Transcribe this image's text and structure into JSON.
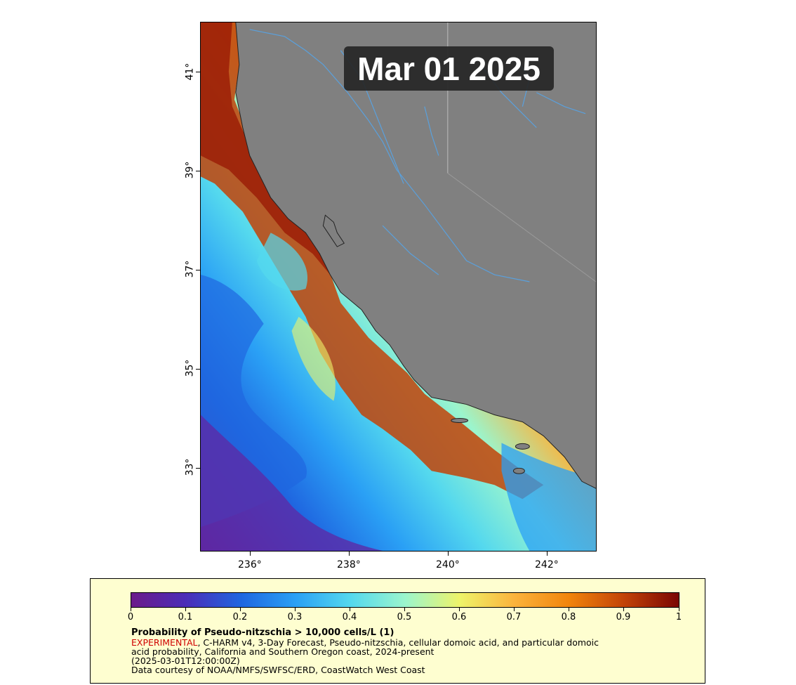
{
  "map": {
    "date_label": "Mar 01 2025",
    "lat_ticks": [
      "41°",
      "39°",
      "37°",
      "35°",
      "33°"
    ],
    "lon_ticks": [
      "236°",
      "238°",
      "240°",
      "242°"
    ],
    "colors": {
      "land": "#808080",
      "rivers": "#5aa0dc",
      "coastline": "#222222",
      "badge_bg": "#262626",
      "badge_text": "#ffffff"
    }
  },
  "legend": {
    "colorbar_ticks": [
      "0",
      "0.1",
      "0.2",
      "0.3",
      "0.4",
      "0.5",
      "0.6",
      "0.7",
      "0.8",
      "0.9",
      "1"
    ],
    "colorbar_colors": [
      "#6b1a8a",
      "#4b2db8",
      "#1f66e0",
      "#2aa0f5",
      "#54d8ee",
      "#9bf5cd",
      "#eef46a",
      "#fbb33c",
      "#f1840c",
      "#c24308",
      "#7a0503"
    ],
    "title": "Probability of Pseudo-nitzschia > 10,000 cells/L (1)",
    "experimental": "EXPERIMENTAL",
    "line1_rest": ", C-HARM v4, 3-Day Forecast, Pseudo-nitzschia, cellular domoic acid, and particular domoic",
    "line2": "acid probability, California and Southern Oregon coast, 2024-present",
    "line3": "(2025-03-01T12:00:00Z)",
    "line4": "Data courtesy of NOAA/NMFS/SWFSC/ERD, CoastWatch West Coast"
  }
}
